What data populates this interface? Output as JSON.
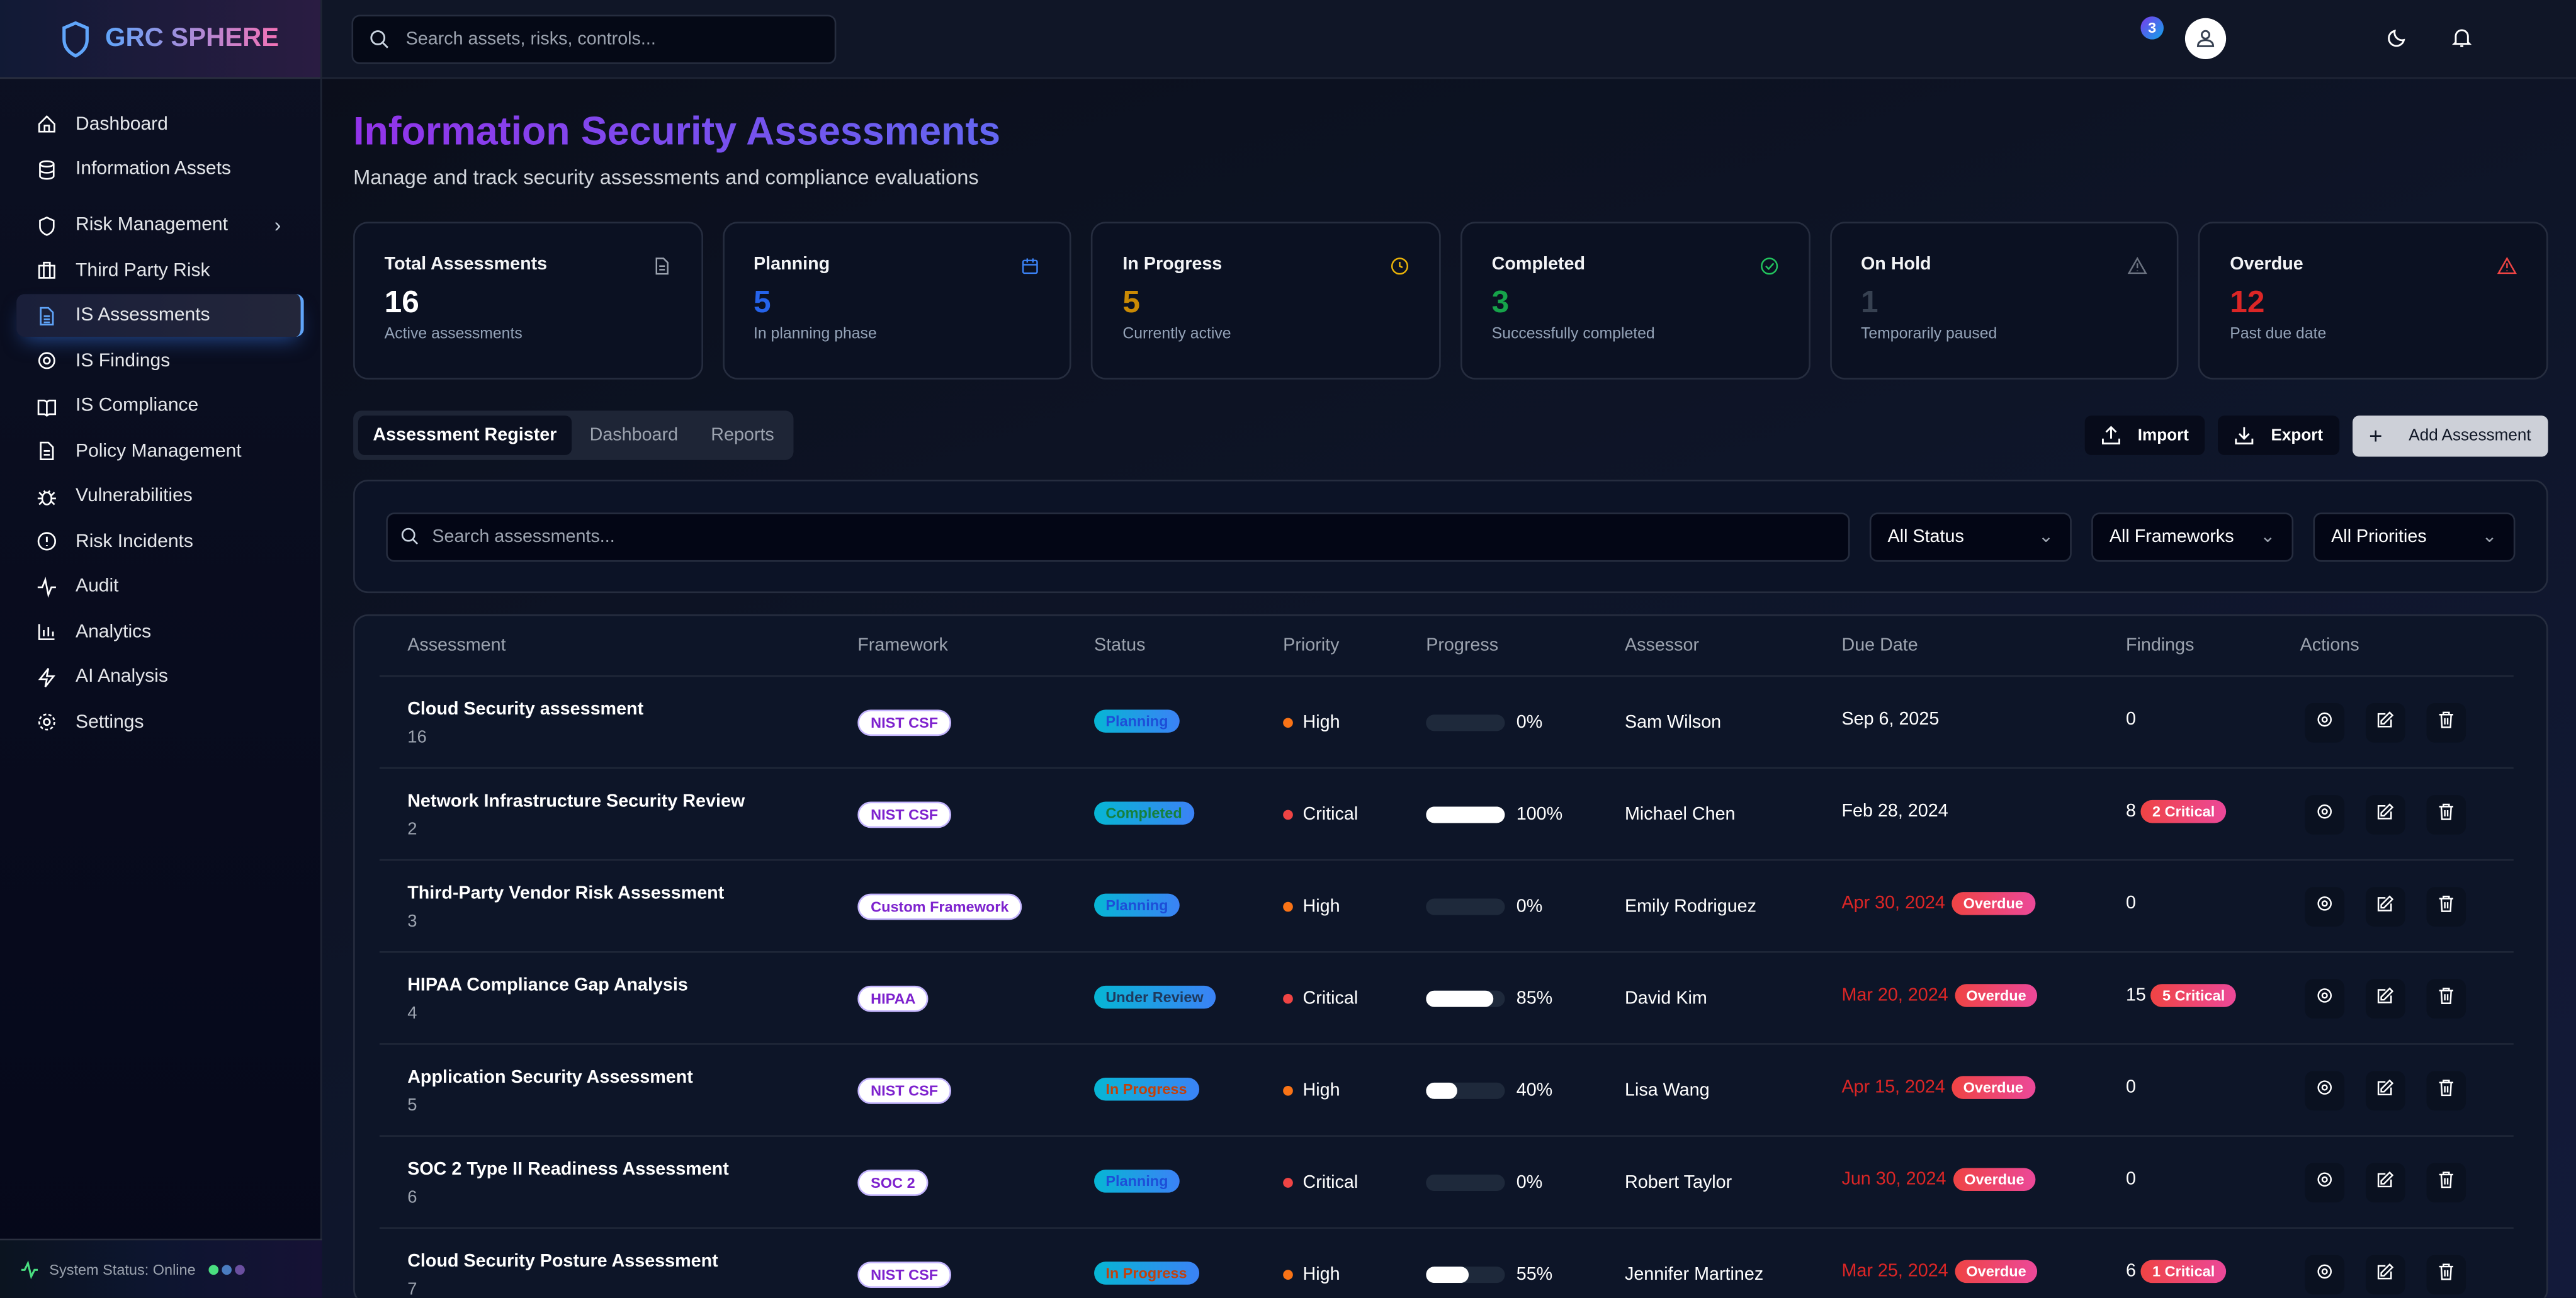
{
  "brand": {
    "name": "GRC SPHERE"
  },
  "search": {
    "placeholder": "Search assets, risks, controls..."
  },
  "notifications": {
    "count": "3"
  },
  "sidebar": {
    "items": [
      {
        "label": "Dashboard",
        "icon": "home-icon"
      },
      {
        "label": "Information Assets",
        "icon": "database-icon"
      },
      {
        "label": "Risk Management",
        "icon": "shield-icon",
        "chevron": true
      },
      {
        "label": "Third Party Risk",
        "icon": "briefcase-icon"
      },
      {
        "label": "IS Assessments",
        "icon": "file-text-icon",
        "active": true
      },
      {
        "label": "IS Findings",
        "icon": "eye-icon"
      },
      {
        "label": "IS Compliance",
        "icon": "book-icon"
      },
      {
        "label": "Policy Management",
        "icon": "file-icon"
      },
      {
        "label": "Vulnerabilities",
        "icon": "bug-icon"
      },
      {
        "label": "Risk Incidents",
        "icon": "alert-circle-icon"
      },
      {
        "label": "Audit",
        "icon": "activity-icon"
      },
      {
        "label": "Analytics",
        "icon": "bar-chart-icon"
      },
      {
        "label": "AI Analysis",
        "icon": "zap-icon"
      },
      {
        "label": "Settings",
        "icon": "gear-icon"
      }
    ],
    "status": "System Status: Online"
  },
  "page": {
    "title": "Information Security Assessments",
    "subtitle": "Manage and track security assessments and compliance evaluations"
  },
  "stats": [
    {
      "title": "Total Assessments",
      "value": "16",
      "desc": "Active assessments",
      "color": "#ffffff",
      "icon": "file-icon",
      "iconColor": "#9ca3af"
    },
    {
      "title": "Planning",
      "value": "5",
      "desc": "In planning phase",
      "color": "#2563eb",
      "icon": "calendar-icon",
      "iconColor": "#3b82f6"
    },
    {
      "title": "In Progress",
      "value": "5",
      "desc": "Currently active",
      "color": "#ca8a04",
      "icon": "clock-icon",
      "iconColor": "#eab308"
    },
    {
      "title": "Completed",
      "value": "3",
      "desc": "Successfully completed",
      "color": "#16a34a",
      "icon": "check-circle-icon",
      "iconColor": "#22c55e"
    },
    {
      "title": "On Hold",
      "value": "1",
      "desc": "Temporarily paused",
      "color": "#374151",
      "icon": "alert-triangle-icon",
      "iconColor": "#6b7280"
    },
    {
      "title": "Overdue",
      "value": "12",
      "desc": "Past due date",
      "color": "#dc2626",
      "icon": "alert-triangle-icon",
      "iconColor": "#ef4444"
    }
  ],
  "tabs": [
    "Assessment Register",
    "Dashboard",
    "Reports"
  ],
  "actions": {
    "import": "Import",
    "export": "Export",
    "add": "Add Assessment"
  },
  "filters": {
    "search_placeholder": "Search assessments...",
    "status": "All Status",
    "framework": "All Frameworks",
    "priority": "All Priorities"
  },
  "table": {
    "columns": [
      "Assessment",
      "Framework",
      "Status",
      "Priority",
      "Progress",
      "Assessor",
      "Due Date",
      "Findings",
      "Actions"
    ],
    "rows": [
      {
        "name": "Cloud Security assessment",
        "id": "16",
        "framework": "NIST CSF",
        "status": "Planning",
        "statusColor": "#1d4ed8",
        "priority": "High",
        "progress": 0,
        "assessor": "Sam Wilson",
        "due": "Sep 6, 2025",
        "overdue": false,
        "findings": "0",
        "critical": ""
      },
      {
        "name": "Network Infrastructure Security Review",
        "id": "2",
        "framework": "NIST CSF",
        "status": "Completed",
        "statusColor": "#15803d",
        "priority": "Critical",
        "progress": 100,
        "assessor": "Michael Chen",
        "due": "Feb 28, 2024",
        "overdue": false,
        "findings": "8",
        "critical": "2 Critical"
      },
      {
        "name": "Third-Party Vendor Risk Assessment",
        "id": "3",
        "framework": "Custom Framework",
        "status": "Planning",
        "statusColor": "#1d4ed8",
        "priority": "High",
        "progress": 0,
        "assessor": "Emily Rodriguez",
        "due": "Apr 30, 2024",
        "overdue": true,
        "findings": "0",
        "critical": ""
      },
      {
        "name": "HIPAA Compliance Gap Analysis",
        "id": "4",
        "framework": "HIPAA",
        "status": "Under Review",
        "statusColor": "#1e3a5f",
        "priority": "Critical",
        "progress": 85,
        "assessor": "David Kim",
        "due": "Mar 20, 2024",
        "overdue": true,
        "findings": "15",
        "critical": "5 Critical"
      },
      {
        "name": "Application Security Assessment",
        "id": "5",
        "framework": "NIST CSF",
        "status": "In Progress",
        "statusColor": "#c2410c",
        "priority": "High",
        "progress": 40,
        "assessor": "Lisa Wang",
        "due": "Apr 15, 2024",
        "overdue": true,
        "findings": "0",
        "critical": ""
      },
      {
        "name": "SOC 2 Type II Readiness Assessment",
        "id": "6",
        "framework": "SOC 2",
        "status": "Planning",
        "statusColor": "#1d4ed8",
        "priority": "Critical",
        "progress": 0,
        "assessor": "Robert Taylor",
        "due": "Jun 30, 2024",
        "overdue": true,
        "findings": "0",
        "critical": ""
      },
      {
        "name": "Cloud Security Posture Assessment",
        "id": "7",
        "framework": "NIST CSF",
        "status": "In Progress",
        "statusColor": "#c2410c",
        "priority": "High",
        "progress": 55,
        "assessor": "Jennifer Martinez",
        "due": "Mar 25, 2024",
        "overdue": true,
        "findings": "6",
        "critical": "1 Critical"
      }
    ],
    "overdue_label": "Overdue"
  },
  "colors": {
    "high": "#f97316",
    "critical": "#ef4444",
    "overdueText": "#dc2626"
  }
}
